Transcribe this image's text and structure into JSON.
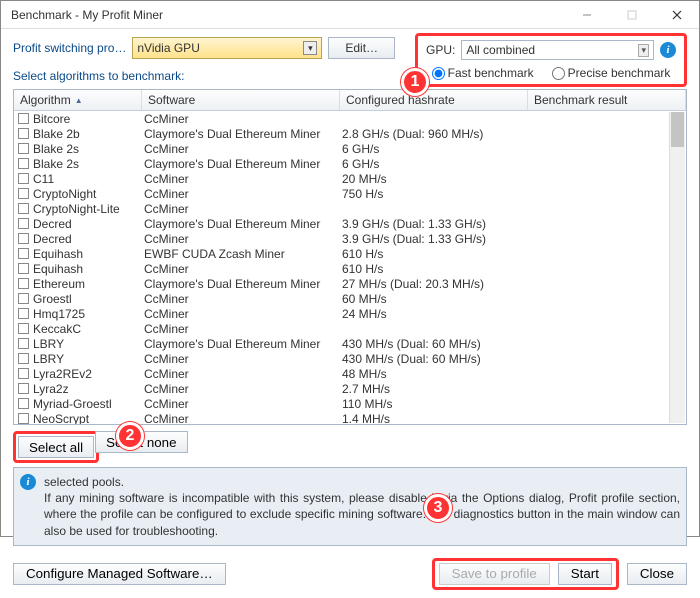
{
  "window": {
    "title": "Benchmark - My Profit Miner"
  },
  "topbar": {
    "profit_label": "Profit switching pro…",
    "profit_value": "nVidia GPU",
    "edit_btn": "Edit…",
    "gpu_label": "GPU:",
    "gpu_value": "All combined",
    "fast_label": "Fast benchmark",
    "precise_label": "Precise benchmark"
  },
  "subtext": "Select algorithms to benchmark:",
  "columns": {
    "c1": "Algorithm",
    "c2": "Software",
    "c3": "Configured hashrate",
    "c4": "Benchmark result"
  },
  "rows": [
    {
      "a": "Bitcore",
      "s": "CcMiner",
      "h": ""
    },
    {
      "a": "Blake 2b",
      "s": "Claymore's Dual Ethereum Miner",
      "h": "2.8 GH/s (Dual: 960 MH/s)"
    },
    {
      "a": "Blake 2s",
      "s": "CcMiner",
      "h": "6 GH/s"
    },
    {
      "a": "Blake 2s",
      "s": "Claymore's Dual Ethereum Miner",
      "h": "6 GH/s"
    },
    {
      "a": "C11",
      "s": "CcMiner",
      "h": "20 MH/s"
    },
    {
      "a": "CryptoNight",
      "s": "CcMiner",
      "h": "750 H/s"
    },
    {
      "a": "CryptoNight-Lite",
      "s": "CcMiner",
      "h": ""
    },
    {
      "a": "Decred",
      "s": "Claymore's Dual Ethereum Miner",
      "h": "3.9 GH/s (Dual: 1.33 GH/s)"
    },
    {
      "a": "Decred",
      "s": "CcMiner",
      "h": "3.9 GH/s (Dual: 1.33 GH/s)"
    },
    {
      "a": "Equihash",
      "s": "EWBF CUDA Zcash Miner",
      "h": "610 H/s"
    },
    {
      "a": "Equihash",
      "s": "CcMiner",
      "h": "610 H/s"
    },
    {
      "a": "Ethereum",
      "s": "Claymore's Dual Ethereum Miner",
      "h": "27 MH/s (Dual: 20.3 MH/s)"
    },
    {
      "a": "Groestl",
      "s": "CcMiner",
      "h": "60 MH/s"
    },
    {
      "a": "Hmq1725",
      "s": "CcMiner",
      "h": "24 MH/s"
    },
    {
      "a": "KeccakC",
      "s": "CcMiner",
      "h": ""
    },
    {
      "a": "LBRY",
      "s": "Claymore's Dual Ethereum Miner",
      "h": "430 MH/s (Dual: 60 MH/s)"
    },
    {
      "a": "LBRY",
      "s": "CcMiner",
      "h": "430 MH/s (Dual: 60 MH/s)"
    },
    {
      "a": "Lyra2REv2",
      "s": "CcMiner",
      "h": "48 MH/s"
    },
    {
      "a": "Lyra2z",
      "s": "CcMiner",
      "h": "2.7 MH/s"
    },
    {
      "a": "Myriad-Groestl",
      "s": "CcMiner",
      "h": "110 MH/s"
    },
    {
      "a": "NeoScrypt",
      "s": "CcMiner",
      "h": "1.4 MH/s"
    }
  ],
  "selbar": {
    "select_all": "Select all",
    "select_none": "Select none"
  },
  "infobox": {
    "line1": "selected pools.",
    "line2": "If any mining software is incompatible with this system, please disable it via the Options dialog, Profit profile section, where the profile can be configured to exclude specific mining software. The diagnostics button in the main window can also be used for troubleshooting."
  },
  "bottom": {
    "configure": "Configure Managed Software…",
    "save": "Save to profile",
    "start": "Start",
    "close": "Close"
  },
  "annotations": {
    "a1": "1",
    "a2": "2",
    "a3": "3"
  },
  "colors": {
    "red": "#ff3333",
    "blue_text": "#0a4a8a",
    "btn_border": "#a9b7c9"
  }
}
